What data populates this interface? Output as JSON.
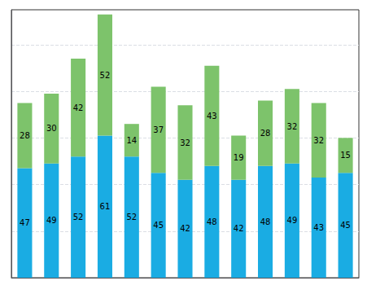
{
  "chart_data": {
    "type": "bar",
    "stacked": true,
    "data_labels": true,
    "grid": true,
    "tick_labels": false,
    "categories": [
      null,
      null,
      null,
      null,
      null,
      null,
      null,
      null,
      null,
      null,
      null,
      null,
      null
    ],
    "series": [
      {
        "color": "#1aace3",
        "values": [
          47,
          49,
          52,
          61,
          52,
          45,
          42,
          48,
          42,
          48,
          49,
          43,
          45
        ]
      },
      {
        "color": "#7dc36b",
        "values": [
          28,
          30,
          42,
          52,
          14,
          37,
          32,
          43,
          19,
          28,
          32,
          32,
          15
        ]
      }
    ],
    "ylim": [
      0,
      115
    ],
    "yticks": [
      20,
      40,
      60,
      80,
      100
    ]
  }
}
